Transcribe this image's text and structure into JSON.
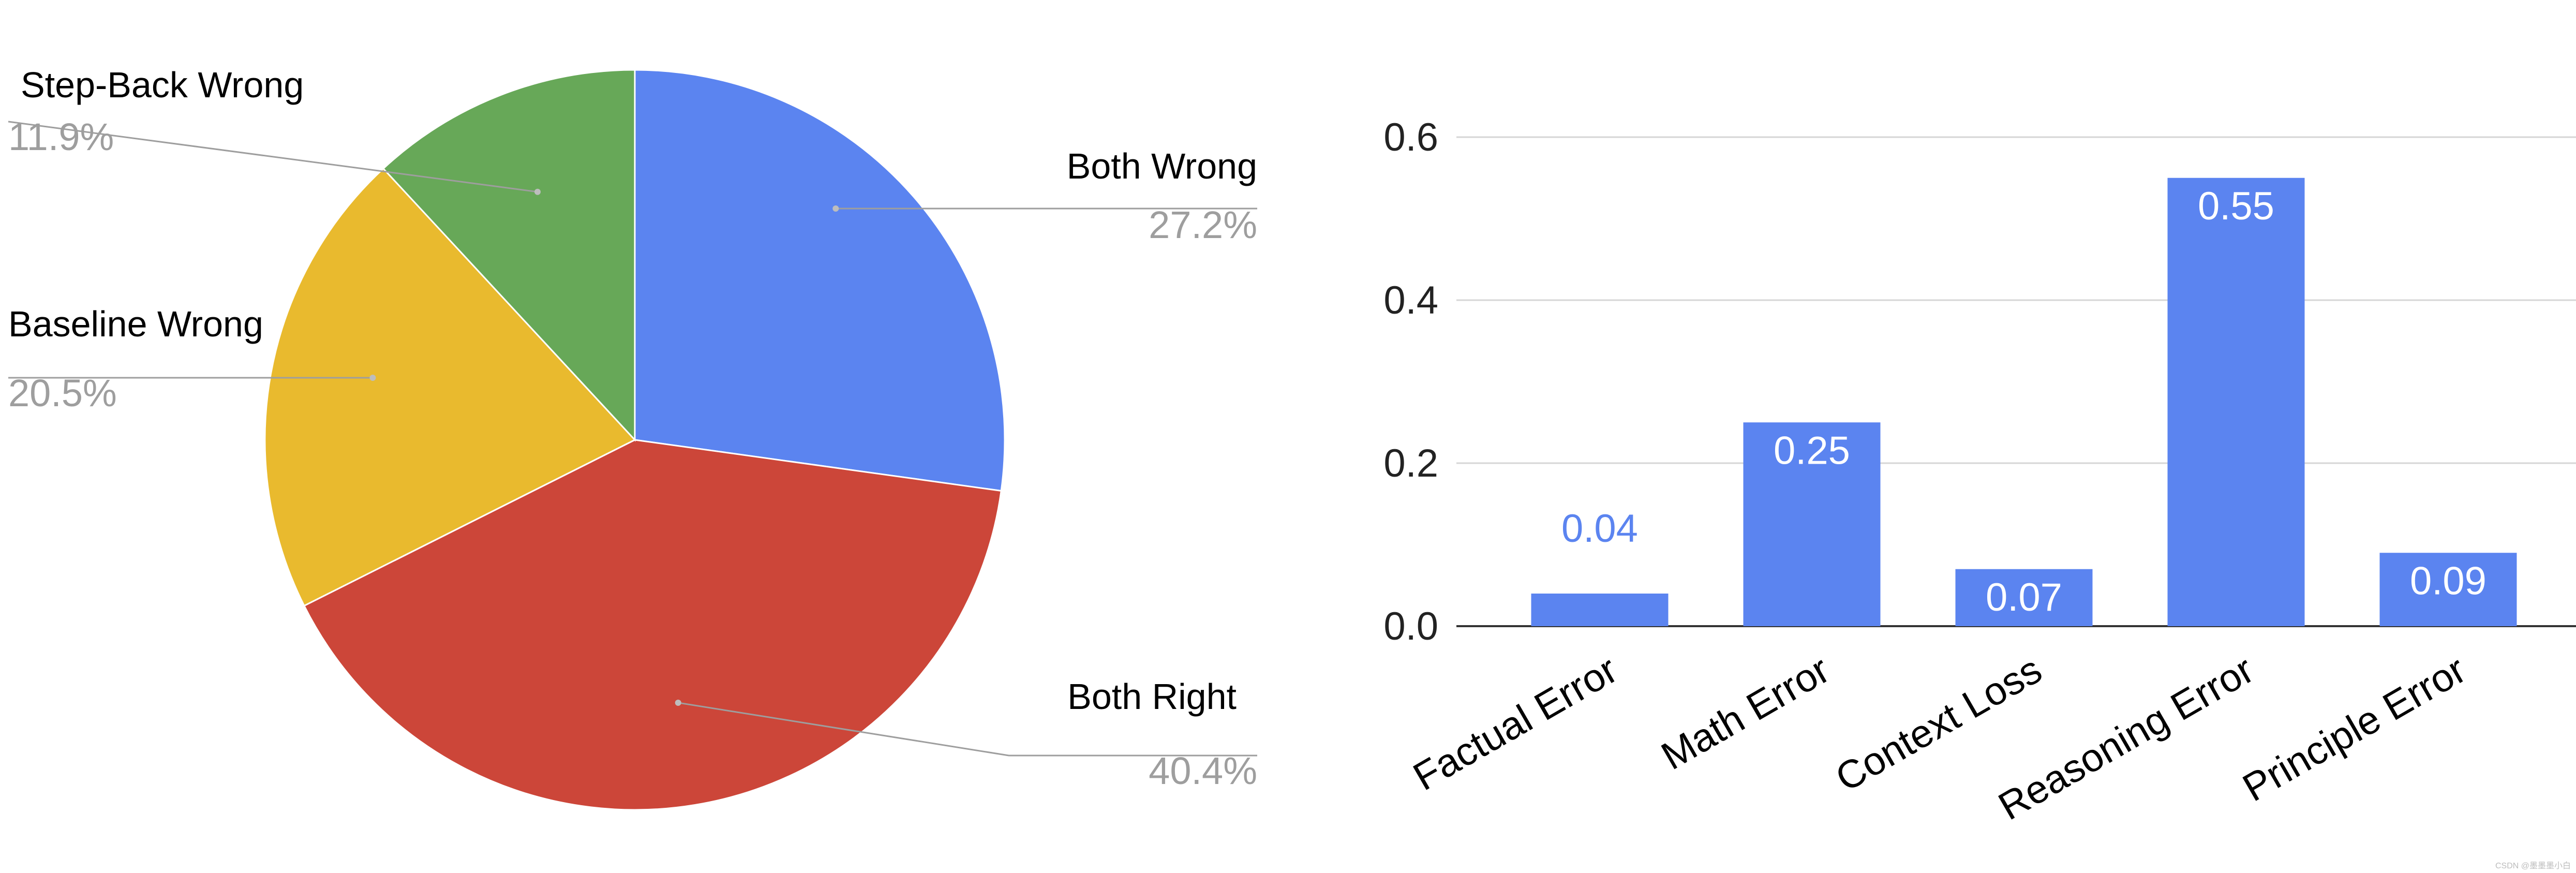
{
  "chart_data": [
    {
      "type": "pie",
      "slices": [
        {
          "label": "Both Wrong",
          "value": 27.2,
          "display": "27.2%",
          "color": "#5b84f0"
        },
        {
          "label": "Both Right",
          "value": 40.4,
          "display": "40.4%",
          "color": "#cc4639"
        },
        {
          "label": "Baseline Wrong",
          "value": 20.5,
          "display": "20.5%",
          "color": "#e9ba2e"
        },
        {
          "label": "Step-Back Wrong",
          "value": 11.9,
          "display": "11.9%",
          "color": "#67a858"
        }
      ],
      "start_angle": "top",
      "direction": "clockwise",
      "label_text_color": "#000000",
      "value_text_color": "#9e9e9e",
      "leader_line_color": "#9e9e9e"
    },
    {
      "type": "bar",
      "categories": [
        "Factual Error",
        "Math Error",
        "Context Loss",
        "Reasoning Error",
        "Principle Error"
      ],
      "values": [
        0.04,
        0.25,
        0.07,
        0.55,
        0.09
      ],
      "data_labels": [
        "0.04",
        "0.25",
        "0.07",
        "0.55",
        "0.09"
      ],
      "bar_color": "#5b84f0",
      "ylim": [
        0,
        0.6
      ],
      "yticks": [
        0.0,
        0.2,
        0.4,
        0.6
      ],
      "ytick_labels": [
        "0.0",
        "0.2",
        "0.4",
        "0.6"
      ],
      "grid": true,
      "xtick_rotation": -30
    }
  ],
  "watermark": "CSDN @墨墨墨小白"
}
